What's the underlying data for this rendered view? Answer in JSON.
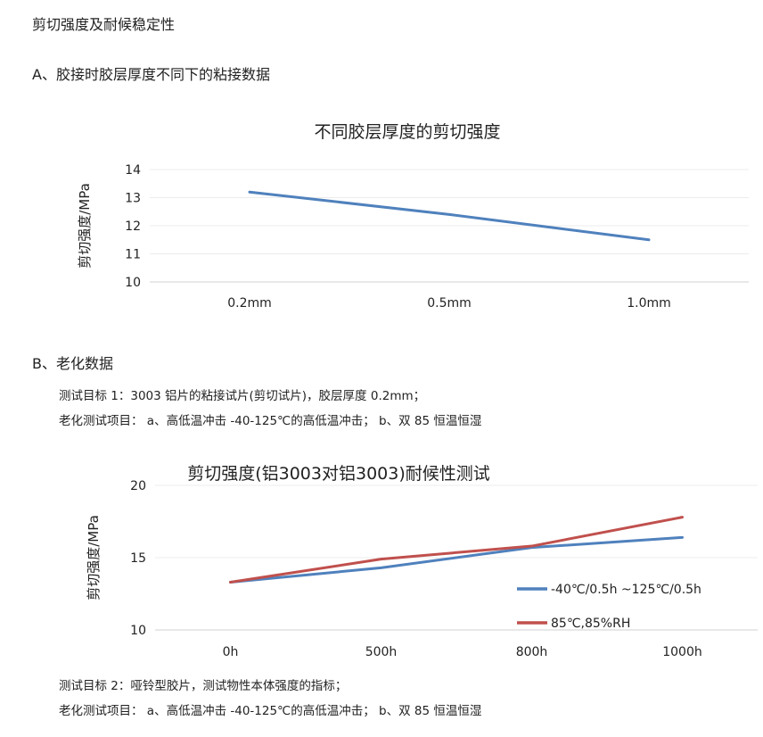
{
  "page": {
    "heading": "剪切强度及耐候稳定性",
    "section_a": "A、胶接时胶层厚度不同下的粘接数据",
    "section_b": "B、老化数据",
    "test1_target": "测试目标 1：3003 铝片的粘接试片(剪切试片)，胶层厚度 0.2mm；",
    "test1_items": "老化测试项目： a、高低温冲击 -40-125℃的高低温冲击； b、双 85 恒温恒湿",
    "test2_target": "测试目标 2：哑铃型胶片，测试物性本体强度的指标；",
    "test2_items": "老化测试项目： a、高低温冲击 -40-125℃的高低温冲击； b、双 85 恒温恒湿"
  },
  "chart_data": [
    {
      "type": "line",
      "title": "不同胶层厚度的剪切强度",
      "ylabel": "剪切强度/MPa",
      "xlabel": "",
      "categories": [
        "0.2mm",
        "0.5mm",
        "1.0mm"
      ],
      "series": [
        {
          "values": [
            13.2,
            12.4,
            11.5
          ],
          "color": "#4f81bd"
        }
      ],
      "ylim": [
        10,
        14
      ],
      "yticks": [
        10,
        11,
        12,
        13,
        14
      ],
      "grid": true
    },
    {
      "type": "line",
      "title": "剪切强度(铝3003对铝3003)耐候性测试",
      "ylabel": "剪切强度/MPa",
      "xlabel": "",
      "categories": [
        "0h",
        "500h",
        "800h",
        "1000h"
      ],
      "series": [
        {
          "name": "-40℃/0.5h ~125℃/0.5h",
          "values": [
            13.3,
            14.3,
            15.7,
            16.4
          ],
          "color": "#4f81bd"
        },
        {
          "name": "85℃,85%RH",
          "values": [
            13.3,
            14.9,
            15.8,
            17.8
          ],
          "color": "#c0504d"
        }
      ],
      "ylim": [
        10,
        20
      ],
      "yticks": [
        10,
        15,
        20
      ],
      "grid": true,
      "legend": "bottom-right"
    }
  ]
}
